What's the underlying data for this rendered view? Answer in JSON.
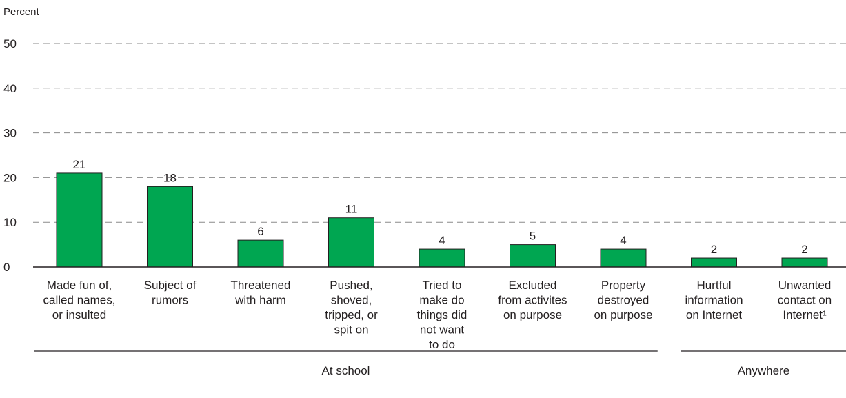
{
  "chart_data": {
    "type": "bar",
    "ylabel": "Percent",
    "ylim": [
      0,
      50
    ],
    "yticks": [
      0,
      10,
      20,
      30,
      40,
      50
    ],
    "grid": true,
    "bar_color": "#00a651",
    "categories": [
      [
        "Made fun of,",
        "called names,",
        "or insulted"
      ],
      [
        "Subject of",
        "rumors"
      ],
      [
        "Threatened",
        "with harm"
      ],
      [
        "Pushed,",
        "shoved,",
        "tripped, or",
        "spit on"
      ],
      [
        "Tried to",
        "make do",
        "things did",
        "not want",
        "to do"
      ],
      [
        "Excluded",
        "from activites",
        "on purpose"
      ],
      [
        "Property",
        "destroyed",
        "on purpose"
      ],
      [
        "Hurtful",
        "information",
        "on Internet"
      ],
      [
        "Unwanted",
        "contact on",
        "Internet¹"
      ]
    ],
    "values": [
      21,
      18,
      6,
      11,
      4,
      5,
      4,
      2,
      2
    ],
    "groups": [
      {
        "label": "At school",
        "from": 0,
        "to": 6
      },
      {
        "label": "Anywhere",
        "from": 7,
        "to": 8
      }
    ]
  }
}
